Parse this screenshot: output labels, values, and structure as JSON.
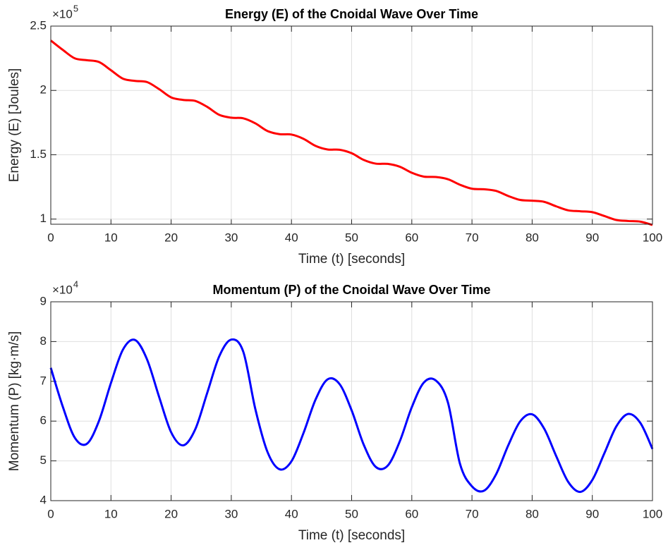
{
  "chart_data": [
    {
      "type": "line",
      "title": "Energy (E) of the Cnoidal Wave Over Time",
      "xlabel": "Time (t) [seconds]",
      "ylabel": "Energy (E) [Joules]",
      "y_multiplier": "×10",
      "y_exponent": 5,
      "x": [
        0,
        2,
        4,
        6,
        8,
        10,
        12,
        14,
        16,
        18,
        20,
        22,
        24,
        26,
        28,
        30,
        32,
        34,
        36,
        38,
        40,
        42,
        44,
        46,
        48,
        50,
        52,
        54,
        56,
        58,
        60,
        62,
        64,
        66,
        68,
        70,
        72,
        74,
        76,
        78,
        80,
        82,
        84,
        86,
        88,
        90,
        92,
        94,
        96,
        98,
        100
      ],
      "values": [
        2.388,
        2.315,
        2.249,
        2.235,
        2.221,
        2.157,
        2.091,
        2.074,
        2.065,
        2.01,
        1.946,
        1.926,
        1.919,
        1.872,
        1.81,
        1.788,
        1.783,
        1.744,
        1.685,
        1.66,
        1.657,
        1.624,
        1.569,
        1.541,
        1.539,
        1.512,
        1.46,
        1.431,
        1.429,
        1.407,
        1.36,
        1.33,
        1.327,
        1.31,
        1.267,
        1.236,
        1.232,
        1.219,
        1.18,
        1.149,
        1.143,
        1.134,
        1.099,
        1.068,
        1.061,
        1.054,
        1.024,
        0.993,
        0.985,
        0.98,
        0.954
      ],
      "color": "#ff0000",
      "xlim": [
        0,
        100
      ],
      "ylim": [
        0.96,
        2.5
      ],
      "xticks": [
        0,
        10,
        20,
        30,
        40,
        50,
        60,
        70,
        80,
        90,
        100
      ],
      "yticks": [
        1,
        1.5,
        2,
        2.5
      ],
      "grid": true
    },
    {
      "type": "line",
      "title": "Momentum (P) of the Cnoidal Wave Over Time",
      "xlabel": "Time (t) [seconds]",
      "ylabel": "Momentum (P) [kg·m/s]",
      "y_multiplier": "×10",
      "y_exponent": 4,
      "x": [
        0,
        2,
        4,
        6,
        8,
        10,
        12,
        14,
        16,
        18,
        20,
        22,
        24,
        26,
        28,
        30,
        32,
        34,
        36,
        38,
        40,
        42,
        44,
        46,
        48,
        50,
        52,
        54,
        56,
        58,
        60,
        62,
        64,
        66,
        68,
        70,
        72,
        74,
        76,
        78,
        80,
        82,
        84,
        86,
        88,
        90,
        92,
        94,
        96,
        98,
        100
      ],
      "values": [
        7.34,
        6.36,
        5.58,
        5.43,
        6.0,
        6.96,
        7.8,
        8.04,
        7.55,
        6.61,
        5.72,
        5.39,
        5.79,
        6.71,
        7.63,
        8.05,
        7.74,
        6.3,
        5.23,
        4.79,
        4.99,
        5.7,
        6.54,
        7.05,
        6.93,
        6.27,
        5.41,
        4.85,
        4.88,
        5.49,
        6.35,
        6.97,
        7.02,
        6.47,
        4.93,
        4.36,
        4.25,
        4.66,
        5.38,
        5.99,
        6.17,
        5.81,
        5.12,
        4.47,
        4.22,
        4.52,
        5.19,
        5.87,
        6.18,
        5.95,
        5.3
      ],
      "color": "#0000ff",
      "xlim": [
        0,
        100
      ],
      "ylim": [
        4,
        9
      ],
      "xticks": [
        0,
        10,
        20,
        30,
        40,
        50,
        60,
        70,
        80,
        90,
        100
      ],
      "yticks": [
        4,
        5,
        6,
        7,
        8,
        9
      ],
      "grid": true
    }
  ]
}
